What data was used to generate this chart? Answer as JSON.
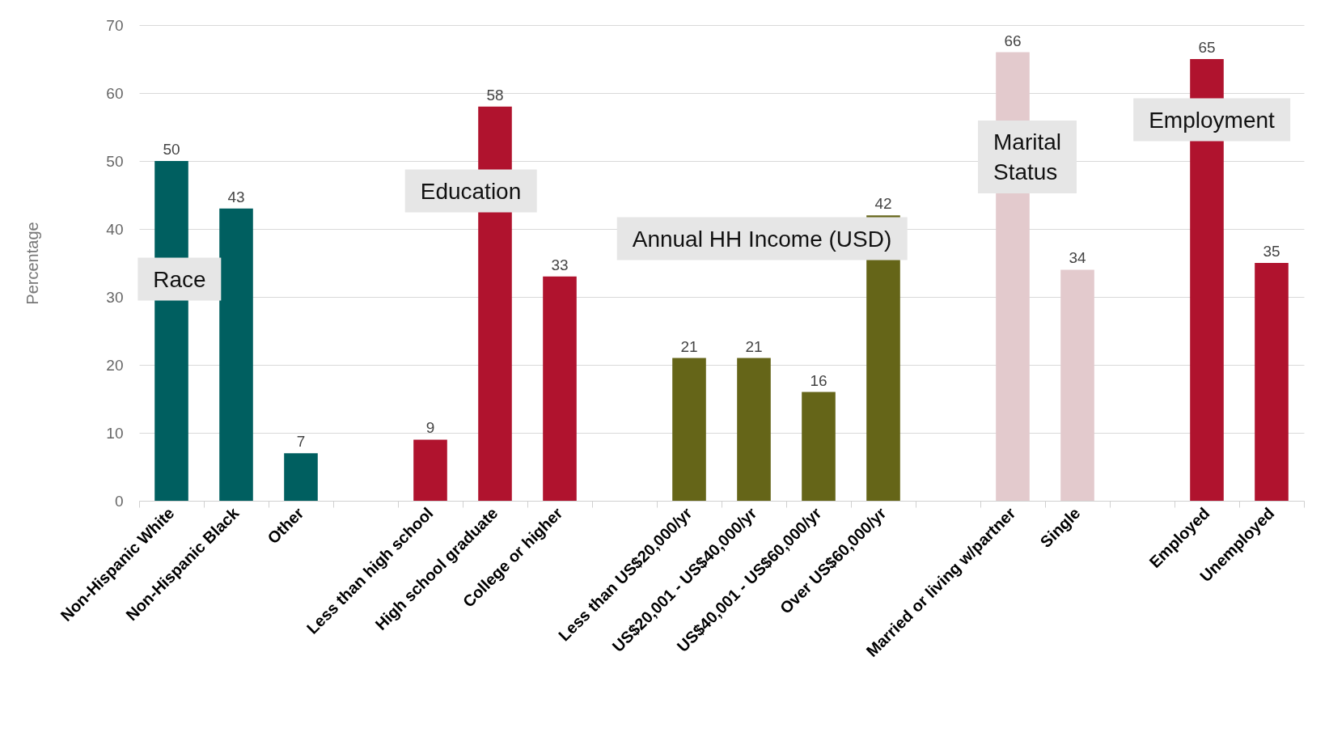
{
  "chart_data": {
    "type": "bar",
    "ylabel": "Percentage",
    "categories": [
      "Non-Hispanic White",
      "Non-Hispanic Black",
      "Other",
      null,
      "Less than high school",
      "High school graduate",
      "College or higher",
      null,
      "Less than US$20,000/yr",
      "US$20,001 - US$40,000/yr",
      "US$40,001 - US$60,000/yr",
      "Over US$60,000/yr",
      null,
      "Married or living w/partner",
      "Single",
      null,
      "Employed",
      "Unemployed"
    ],
    "values": [
      50,
      43,
      7,
      null,
      9,
      58,
      33,
      null,
      21,
      21,
      16,
      42,
      null,
      66,
      34,
      null,
      65,
      35
    ],
    "colors": [
      "#005f60",
      "#005f60",
      "#005f60",
      null,
      "#b0132e",
      "#b0132e",
      "#b0132e",
      null,
      "#656518",
      "#656518",
      "#656518",
      "#656518",
      null,
      "#e3cacd",
      "#e3cacd",
      null,
      "#b0132e",
      "#b0132e"
    ],
    "ylim": [
      0,
      70
    ],
    "yticks": [
      0,
      10,
      20,
      30,
      40,
      50,
      60,
      70
    ],
    "grid": "y",
    "data_labels": true,
    "annotations": [
      "Race",
      "Education",
      "Annual HH Income (USD)",
      "Marital\nStatus",
      "Employment"
    ]
  }
}
